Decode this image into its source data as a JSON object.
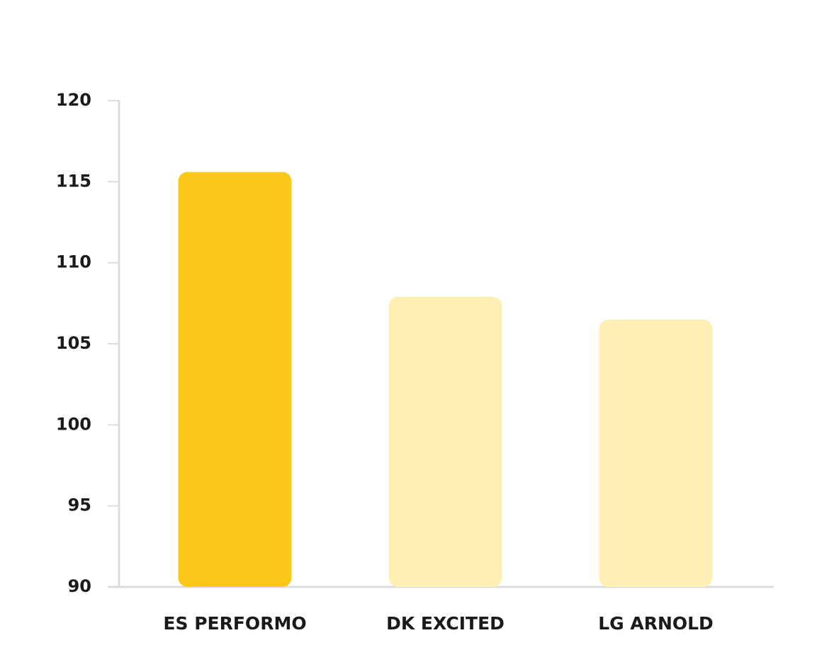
{
  "chart_data": {
    "type": "bar",
    "categories": [
      "ES PERFORMO",
      "DK EXCITED",
      "LG ARNOLD"
    ],
    "values": [
      115.6,
      107.9,
      106.5
    ],
    "colors": [
      "#fac818",
      "#fef0b5",
      "#fef0b5"
    ],
    "ylim": [
      90,
      120
    ],
    "yticks": [
      90,
      95,
      100,
      105,
      110,
      115,
      120
    ],
    "grid": false
  }
}
